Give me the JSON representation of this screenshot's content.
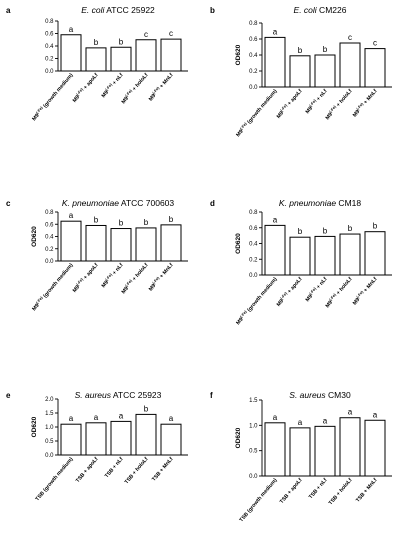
{
  "chart_data": [
    {
      "type": "bar",
      "panel_label": "a",
      "title": {
        "organism": "E. coli",
        "strain": "ATCC 25922"
      },
      "ylabel": "",
      "ylim": [
        0,
        0.8
      ],
      "yticks": [
        "0.0",
        "0.2",
        "0.4",
        "0.6",
        "0.8"
      ],
      "categories": [
        {
          "base": "M9",
          "sup": "(-Fe)",
          "rest": " (growth medium)"
        },
        {
          "base": "M9",
          "sup": "(-Fe)",
          "rest": " + apoLf"
        },
        {
          "base": "M9",
          "sup": "(-Fe)",
          "rest": " + nLf"
        },
        {
          "base": "M9",
          "sup": "(-Fe)",
          "rest": " + holoLf"
        },
        {
          "base": "M9",
          "sup": "(-Fe)",
          "rest": " + MnLf"
        }
      ],
      "values": [
        0.58,
        0.37,
        0.38,
        0.5,
        0.51
      ],
      "letters": [
        "a",
        "b",
        "b",
        "c",
        "c"
      ]
    },
    {
      "type": "bar",
      "panel_label": "b",
      "title": {
        "organism": "E. coli",
        "strain": "CM226"
      },
      "ylabel": "OD620",
      "ylim": [
        0,
        0.8
      ],
      "yticks": [
        "0.0",
        "0.2",
        "0.4",
        "0.6",
        "0.8"
      ],
      "categories": [
        {
          "base": "M9",
          "sup": "(-Fe)",
          "rest": " (growth medium)"
        },
        {
          "base": "M9",
          "sup": "(-Fe)",
          "rest": " + apoLf"
        },
        {
          "base": "M9",
          "sup": "(-Fe)",
          "rest": " + nLf"
        },
        {
          "base": "M9",
          "sup": "(-Fe)",
          "rest": " + holoLf"
        },
        {
          "base": "M9",
          "sup": "(-Fe)",
          "rest": " + MnLf"
        }
      ],
      "values": [
        0.62,
        0.39,
        0.4,
        0.55,
        0.48
      ],
      "letters": [
        "a",
        "b",
        "b",
        "c",
        "c"
      ]
    },
    {
      "type": "bar",
      "panel_label": "c",
      "title": {
        "organism": "K. pneumoniae",
        "strain": "ATCC 700603"
      },
      "ylabel": "OD620",
      "ylim": [
        0,
        0.8
      ],
      "yticks": [
        "0.0",
        "0.2",
        "0.4",
        "0.6",
        "0.8"
      ],
      "categories": [
        {
          "base": "M9",
          "sup": "(-Fe)",
          "rest": " (growth medium)"
        },
        {
          "base": "M9",
          "sup": "(-Fe)",
          "rest": " + apoLf"
        },
        {
          "base": "M9",
          "sup": "(-Fe)",
          "rest": " + nLf"
        },
        {
          "base": "M9",
          "sup": "(-Fe)",
          "rest": " + holoLf"
        },
        {
          "base": "M9",
          "sup": "(-Fe)",
          "rest": " + MnLf"
        }
      ],
      "values": [
        0.65,
        0.58,
        0.53,
        0.54,
        0.59
      ],
      "letters": [
        "a",
        "b",
        "b",
        "b",
        "b"
      ]
    },
    {
      "type": "bar",
      "panel_label": "d",
      "title": {
        "organism": "K. pneumoniae",
        "strain": "CM18"
      },
      "ylabel": "OD620",
      "ylim": [
        0,
        0.8
      ],
      "yticks": [
        "0.0",
        "0.2",
        "0.4",
        "0.6",
        "0.8"
      ],
      "categories": [
        {
          "base": "M9",
          "sup": "(-Fe)",
          "rest": " (growth medium)"
        },
        {
          "base": "M9",
          "sup": "(-Fe)",
          "rest": " + apoLf"
        },
        {
          "base": "M9",
          "sup": "(-Fe)",
          "rest": " + nLf"
        },
        {
          "base": "M9",
          "sup": "(-Fe)",
          "rest": " + holoLf"
        },
        {
          "base": "M9",
          "sup": "(-Fe)",
          "rest": " + MnLf"
        }
      ],
      "values": [
        0.63,
        0.48,
        0.49,
        0.52,
        0.55
      ],
      "letters": [
        "a",
        "b",
        "b",
        "b",
        "b"
      ]
    },
    {
      "type": "bar",
      "panel_label": "e",
      "title": {
        "organism": "S. aureus",
        "strain": "ATCC 25923"
      },
      "ylabel": "OD620",
      "ylim": [
        0,
        2.0
      ],
      "yticks": [
        "0.0",
        "0.5",
        "1.0",
        "1.5",
        "2.0"
      ],
      "categories": [
        {
          "base": "TSB (growth medium)",
          "sup": "",
          "rest": ""
        },
        {
          "base": "TSB + apoLf",
          "sup": "",
          "rest": ""
        },
        {
          "base": "TSB + nLf",
          "sup": "",
          "rest": ""
        },
        {
          "base": "TSB + holoLf",
          "sup": "",
          "rest": ""
        },
        {
          "base": "TSB + MnLf",
          "sup": "",
          "rest": ""
        }
      ],
      "values": [
        1.1,
        1.15,
        1.2,
        1.45,
        1.1
      ],
      "letters": [
        "a",
        "a",
        "a",
        "b",
        "a"
      ]
    },
    {
      "type": "bar",
      "panel_label": "f",
      "title": {
        "organism": "S. aureus",
        "strain": "CM30"
      },
      "ylabel": "OD620",
      "ylim": [
        0,
        1.5
      ],
      "yticks": [
        "0.0",
        "0.5",
        "1.0",
        "1.5"
      ],
      "categories": [
        {
          "base": "TSB (growth medium)",
          "sup": "",
          "rest": ""
        },
        {
          "base": "TSB + apoLf",
          "sup": "",
          "rest": ""
        },
        {
          "base": "TSB + nLf",
          "sup": "",
          "rest": ""
        },
        {
          "base": "TSB + holoLf",
          "sup": "",
          "rest": ""
        },
        {
          "base": "TSB + MnLf",
          "sup": "",
          "rest": ""
        }
      ],
      "values": [
        1.05,
        0.95,
        0.98,
        1.15,
        1.1
      ],
      "letters": [
        "a",
        "a",
        "a",
        "a",
        "a"
      ]
    }
  ]
}
